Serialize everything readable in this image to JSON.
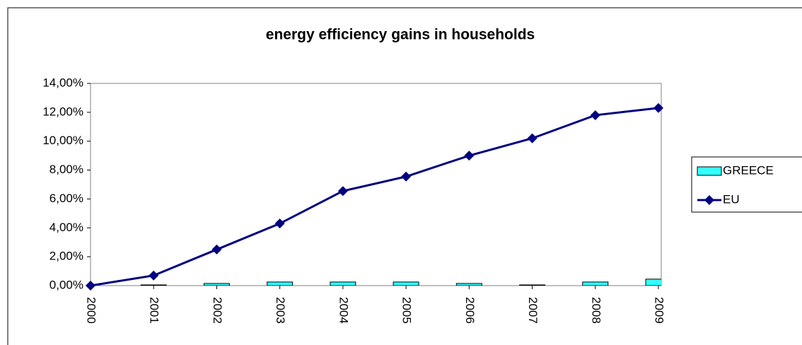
{
  "chart_data": {
    "type": "combo",
    "title": "energy efficiency gains in households",
    "categories": [
      "2000",
      "2001",
      "2002",
      "2003",
      "2004",
      "2005",
      "2006",
      "2007",
      "2008",
      "2009"
    ],
    "series": [
      {
        "name": "GREECE",
        "type": "bar",
        "color": "#33ffff",
        "values": [
          0,
          0.05,
          0.15,
          0.25,
          0.25,
          0.25,
          0.15,
          0.05,
          0.25,
          0.45
        ]
      },
      {
        "name": "EU",
        "type": "line",
        "color": "#000080",
        "values": [
          0,
          0.7,
          2.5,
          4.3,
          6.55,
          7.55,
          9.0,
          10.2,
          11.8,
          12.3
        ]
      }
    ],
    "ylim": [
      0,
      14
    ],
    "yticks": [
      {
        "value": 0,
        "label": "0,00%"
      },
      {
        "value": 2,
        "label": "2,00%"
      },
      {
        "value": 4,
        "label": "4,00%"
      },
      {
        "value": 6,
        "label": "6,00%"
      },
      {
        "value": 8,
        "label": "8,00%"
      },
      {
        "value": 10,
        "label": "10,00%"
      },
      {
        "value": 12,
        "label": "12,00%"
      },
      {
        "value": 14,
        "label": "14,00%"
      }
    ],
    "legend": "right"
  }
}
